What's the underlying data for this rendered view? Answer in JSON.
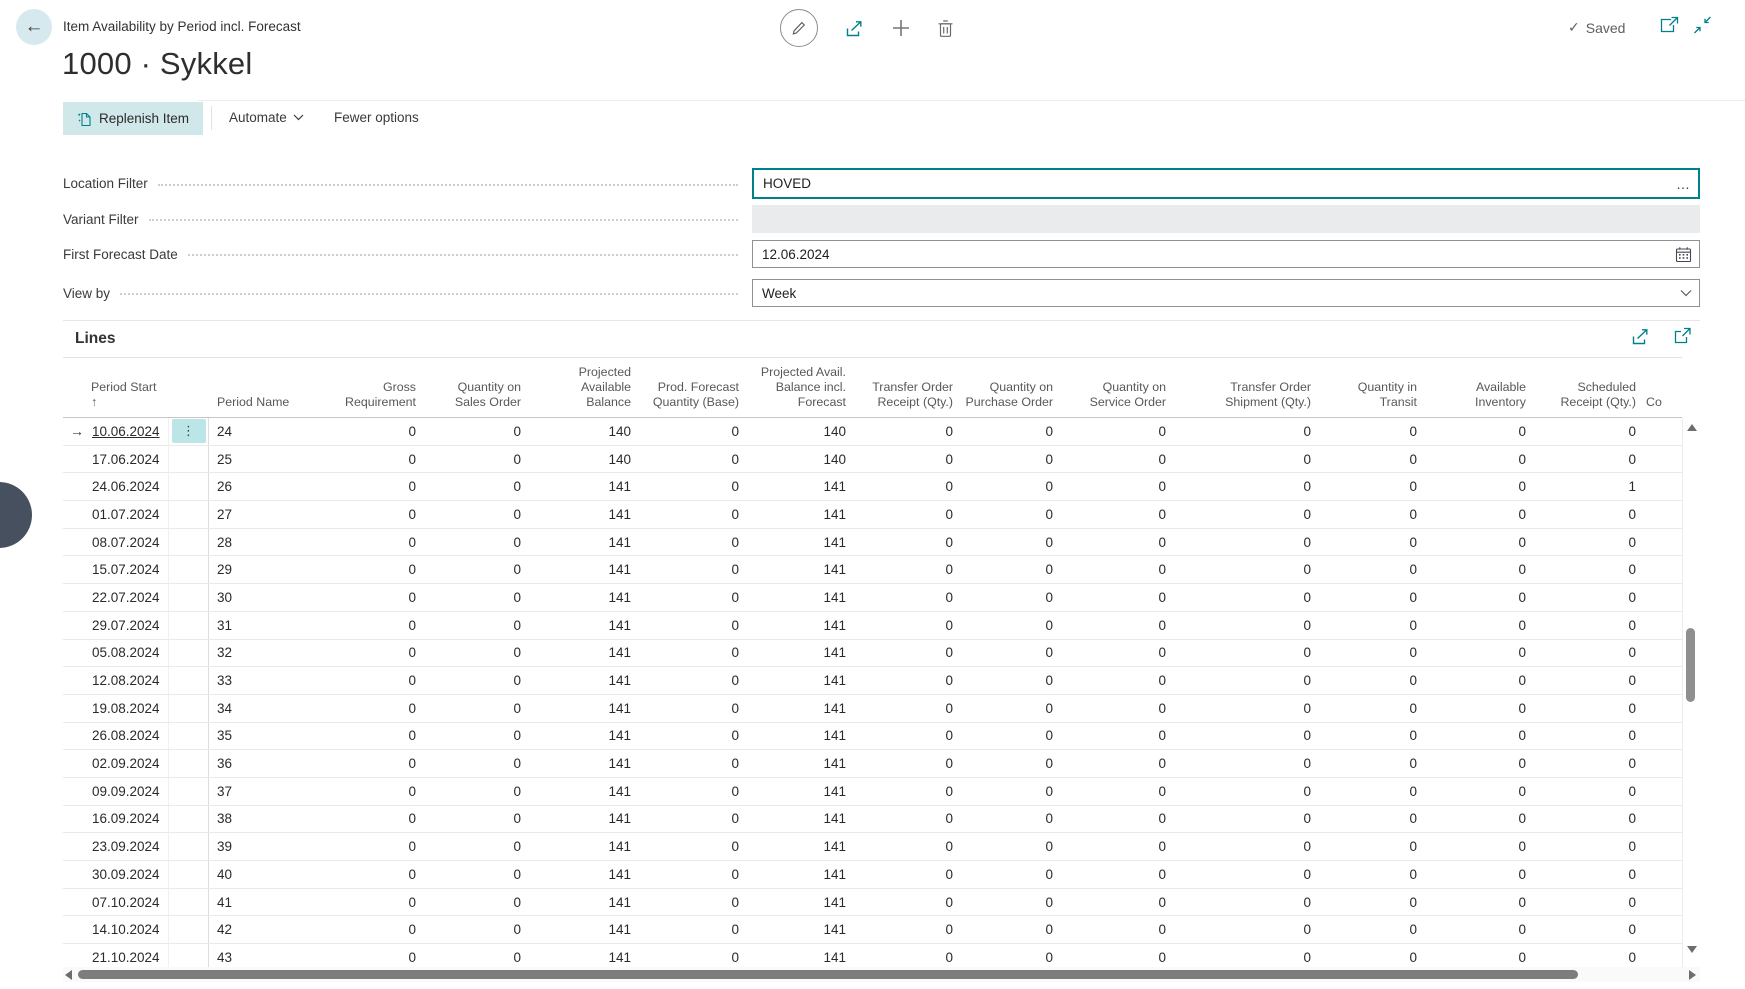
{
  "app_header": {
    "title": "Item Availability by Period incl. Forecast",
    "saved_label": "Saved",
    "saved_check": "✓"
  },
  "page": {
    "title": "1000 · Sykkel"
  },
  "action_bar": {
    "replenish_item": "Replenish Item",
    "automate": "Automate",
    "fewer_options": "Fewer options"
  },
  "filters": {
    "location": {
      "label": "Location Filter",
      "value": "HOVED"
    },
    "variant": {
      "label": "Variant Filter",
      "value": ""
    },
    "first_forecast_date": {
      "label": "First Forecast Date",
      "value": "12.06.2024"
    },
    "view_by": {
      "label": "View by",
      "value": "Week"
    }
  },
  "lines": {
    "caption": "Lines",
    "sort_indicator": "↑",
    "row_marker": "→",
    "row_menu_glyph": "⋮",
    "columns": [
      "Period Start",
      "Period Name",
      "Gross Requirement",
      "Quantity on Sales Order",
      "Projected Available Balance",
      "Prod. Forecast Quantity (Base)",
      "Projected Avail. Balance incl. Forecast",
      "Transfer Order Receipt (Qty.)",
      "Quantity on Purchase Order",
      "Quantity on Service Order",
      "Transfer Order Shipment (Qty.)",
      "Quantity in Transit",
      "Available Inventory",
      "Scheduled Receipt (Qty.)",
      "Co"
    ],
    "value_fields": [
      "gross_requirement",
      "qty_on_sales_order",
      "projected_available_balance",
      "prod_forecast_quantity_base",
      "projected_avail_balance_incl_forecast",
      "transfer_order_receipt_qty",
      "qty_on_purchase_order",
      "qty_on_service_order",
      "transfer_order_shipment_qty",
      "qty_in_transit",
      "available_inventory",
      "scheduled_receipt_qty"
    ],
    "rows": [
      {
        "period_start": "10.06.2024",
        "period_name": "24",
        "selected": true,
        "values": [
          0,
          0,
          140,
          0,
          140,
          0,
          0,
          0,
          0,
          0,
          0,
          0
        ]
      },
      {
        "period_start": "17.06.2024",
        "period_name": "25",
        "selected": false,
        "values": [
          0,
          0,
          140,
          0,
          140,
          0,
          0,
          0,
          0,
          0,
          0,
          0
        ]
      },
      {
        "period_start": "24.06.2024",
        "period_name": "26",
        "selected": false,
        "values": [
          0,
          0,
          141,
          0,
          141,
          0,
          0,
          0,
          0,
          0,
          0,
          1
        ]
      },
      {
        "period_start": "01.07.2024",
        "period_name": "27",
        "selected": false,
        "values": [
          0,
          0,
          141,
          0,
          141,
          0,
          0,
          0,
          0,
          0,
          0,
          0
        ]
      },
      {
        "period_start": "08.07.2024",
        "period_name": "28",
        "selected": false,
        "values": [
          0,
          0,
          141,
          0,
          141,
          0,
          0,
          0,
          0,
          0,
          0,
          0
        ]
      },
      {
        "period_start": "15.07.2024",
        "period_name": "29",
        "selected": false,
        "values": [
          0,
          0,
          141,
          0,
          141,
          0,
          0,
          0,
          0,
          0,
          0,
          0
        ]
      },
      {
        "period_start": "22.07.2024",
        "period_name": "30",
        "selected": false,
        "values": [
          0,
          0,
          141,
          0,
          141,
          0,
          0,
          0,
          0,
          0,
          0,
          0
        ]
      },
      {
        "period_start": "29.07.2024",
        "period_name": "31",
        "selected": false,
        "values": [
          0,
          0,
          141,
          0,
          141,
          0,
          0,
          0,
          0,
          0,
          0,
          0
        ]
      },
      {
        "period_start": "05.08.2024",
        "period_name": "32",
        "selected": false,
        "values": [
          0,
          0,
          141,
          0,
          141,
          0,
          0,
          0,
          0,
          0,
          0,
          0
        ]
      },
      {
        "period_start": "12.08.2024",
        "period_name": "33",
        "selected": false,
        "values": [
          0,
          0,
          141,
          0,
          141,
          0,
          0,
          0,
          0,
          0,
          0,
          0
        ]
      },
      {
        "period_start": "19.08.2024",
        "period_name": "34",
        "selected": false,
        "values": [
          0,
          0,
          141,
          0,
          141,
          0,
          0,
          0,
          0,
          0,
          0,
          0
        ]
      },
      {
        "period_start": "26.08.2024",
        "period_name": "35",
        "selected": false,
        "values": [
          0,
          0,
          141,
          0,
          141,
          0,
          0,
          0,
          0,
          0,
          0,
          0
        ]
      },
      {
        "period_start": "02.09.2024",
        "period_name": "36",
        "selected": false,
        "values": [
          0,
          0,
          141,
          0,
          141,
          0,
          0,
          0,
          0,
          0,
          0,
          0
        ]
      },
      {
        "period_start": "09.09.2024",
        "period_name": "37",
        "selected": false,
        "values": [
          0,
          0,
          141,
          0,
          141,
          0,
          0,
          0,
          0,
          0,
          0,
          0
        ]
      },
      {
        "period_start": "16.09.2024",
        "period_name": "38",
        "selected": false,
        "values": [
          0,
          0,
          141,
          0,
          141,
          0,
          0,
          0,
          0,
          0,
          0,
          0
        ]
      },
      {
        "period_start": "23.09.2024",
        "period_name": "39",
        "selected": false,
        "values": [
          0,
          0,
          141,
          0,
          141,
          0,
          0,
          0,
          0,
          0,
          0,
          0
        ]
      },
      {
        "period_start": "30.09.2024",
        "period_name": "40",
        "selected": false,
        "values": [
          0,
          0,
          141,
          0,
          141,
          0,
          0,
          0,
          0,
          0,
          0,
          0
        ]
      },
      {
        "period_start": "07.10.2024",
        "period_name": "41",
        "selected": false,
        "values": [
          0,
          0,
          141,
          0,
          141,
          0,
          0,
          0,
          0,
          0,
          0,
          0
        ]
      },
      {
        "period_start": "14.10.2024",
        "period_name": "42",
        "selected": false,
        "values": [
          0,
          0,
          141,
          0,
          141,
          0,
          0,
          0,
          0,
          0,
          0,
          0
        ]
      },
      {
        "period_start": "21.10.2024",
        "period_name": "43",
        "selected": false,
        "values": [
          0,
          0,
          141,
          0,
          141,
          0,
          0,
          0,
          0,
          0,
          0,
          0
        ]
      }
    ]
  },
  "colors": {
    "accent": "#008089",
    "selection": "#bce5e7",
    "button_bg": "#d1e8ea"
  }
}
